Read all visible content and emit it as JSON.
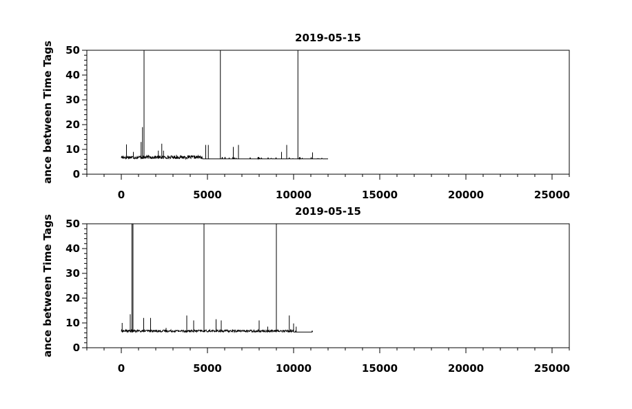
{
  "chart_data": [
    {
      "type": "line",
      "title": "2019-05-15",
      "ylabel": "ance between Time Tags",
      "xlabel": "",
      "xlim": [
        -2000,
        26000
      ],
      "ylim": [
        0,
        50
      ],
      "x_ticks": [
        0,
        5000,
        10000,
        15000,
        20000,
        25000
      ],
      "x_tick_labels": [
        "0",
        "5000",
        "10000",
        "15000",
        "20000",
        "25000"
      ],
      "y_ticks": [
        0,
        10,
        20,
        30,
        40,
        50
      ],
      "y_tick_labels": [
        "0",
        "10",
        "20",
        "30",
        "40",
        "50"
      ],
      "grid": false,
      "baseline": 6.2,
      "x_end": 12000,
      "spikes": [
        {
          "x": 300,
          "y": 12
        },
        {
          "x": 700,
          "y": 9
        },
        {
          "x": 1150,
          "y": 13
        },
        {
          "x": 1230,
          "y": 19
        },
        {
          "x": 1320,
          "y": 50
        },
        {
          "x": 2150,
          "y": 9.5
        },
        {
          "x": 2350,
          "y": 12.3
        },
        {
          "x": 2450,
          "y": 9.5
        },
        {
          "x": 3200,
          "y": 7.8
        },
        {
          "x": 4900,
          "y": 11.8
        },
        {
          "x": 5050,
          "y": 11.8
        },
        {
          "x": 5750,
          "y": 50
        },
        {
          "x": 6500,
          "y": 11
        },
        {
          "x": 6800,
          "y": 11.8
        },
        {
          "x": 9300,
          "y": 9
        },
        {
          "x": 9600,
          "y": 11.8
        },
        {
          "x": 10250,
          "y": 50
        },
        {
          "x": 11100,
          "y": 8.8
        }
      ],
      "dense_ranges": [
        {
          "x0": 0,
          "x1": 4700,
          "ymax": 7.5
        }
      ]
    },
    {
      "type": "line",
      "title": "2019-05-15",
      "ylabel": "ance between Time Tags",
      "xlabel": "",
      "xlim": [
        -2000,
        26000
      ],
      "ylim": [
        0,
        50
      ],
      "x_ticks": [
        0,
        5000,
        10000,
        15000,
        20000,
        25000
      ],
      "x_tick_labels": [
        "0",
        "5000",
        "10000",
        "15000",
        "20000",
        "25000"
      ],
      "y_ticks": [
        0,
        10,
        20,
        30,
        40,
        50
      ],
      "y_tick_labels": [
        "0",
        "10",
        "20",
        "30",
        "40",
        "50"
      ],
      "grid": false,
      "baseline": 6.3,
      "x_end": 11100,
      "spikes": [
        {
          "x": 50,
          "y": 10
        },
        {
          "x": 520,
          "y": 13.5
        },
        {
          "x": 620,
          "y": 50
        },
        {
          "x": 680,
          "y": 50
        },
        {
          "x": 1300,
          "y": 12
        },
        {
          "x": 1700,
          "y": 12
        },
        {
          "x": 2600,
          "y": 8
        },
        {
          "x": 3800,
          "y": 13
        },
        {
          "x": 4200,
          "y": 11
        },
        {
          "x": 4800,
          "y": 50
        },
        {
          "x": 5500,
          "y": 11.5
        },
        {
          "x": 5800,
          "y": 11
        },
        {
          "x": 8000,
          "y": 11
        },
        {
          "x": 8500,
          "y": 8.5
        },
        {
          "x": 9000,
          "y": 50
        },
        {
          "x": 9750,
          "y": 13
        },
        {
          "x": 10000,
          "y": 9.8
        },
        {
          "x": 10150,
          "y": 8.5
        }
      ],
      "dense_ranges": [
        {
          "x0": 0,
          "x1": 10000,
          "ymax": 7.2
        }
      ]
    }
  ]
}
